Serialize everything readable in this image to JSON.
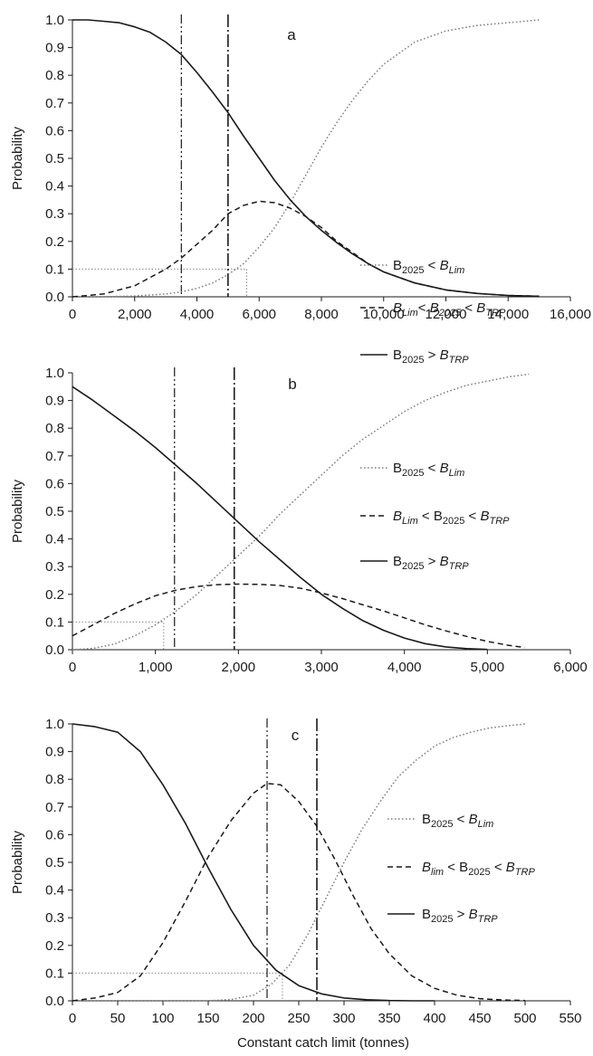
{
  "chart_data": [
    {
      "type": "line",
      "panel_label": "a",
      "ylabel": "Probability",
      "xlabel": "",
      "xlim": [
        0,
        16000
      ],
      "ylim": [
        0,
        1
      ],
      "xticks": [
        0,
        2000,
        4000,
        6000,
        8000,
        10000,
        12000,
        14000,
        16000
      ],
      "xtick_labels": [
        "0",
        "2,000",
        "4,000",
        "6,000",
        "8,000",
        "10,000",
        "12,000",
        "14,000",
        "16,000"
      ],
      "yticks": [
        0,
        0.1,
        0.2,
        0.3,
        0.4,
        0.5,
        0.6,
        0.7,
        0.8,
        0.9,
        1.0
      ],
      "ytick_labels": [
        "0.0",
        "0.1",
        "0.2",
        "0.3",
        "0.4",
        "0.5",
        "0.6",
        "0.7",
        "0.8",
        "0.9",
        "1.0"
      ],
      "grid": false,
      "legend_position": "right",
      "legend": [
        {
          "style": "dotted",
          "parts": [
            [
              "B",
              "n"
            ],
            [
              "2025",
              "sub"
            ],
            [
              " < ",
              "n"
            ],
            [
              "B",
              "i"
            ],
            [
              "Lim",
              "isub"
            ]
          ]
        },
        {
          "style": "dashed",
          "parts": [
            [
              "B",
              "i"
            ],
            [
              "Lim",
              "isub"
            ],
            [
              "< ",
              "n"
            ],
            [
              "B",
              "i"
            ],
            [
              "2025",
              "isub"
            ],
            [
              " < ",
              "n"
            ],
            [
              "B",
              "i"
            ],
            [
              "TRP",
              "isub"
            ]
          ]
        },
        {
          "style": "solid",
          "parts": [
            [
              "B",
              "n"
            ],
            [
              "2025",
              "sub"
            ],
            [
              " > ",
              "n"
            ],
            [
              "B",
              "i"
            ],
            [
              "TRP",
              "isub"
            ]
          ]
        }
      ],
      "series": [
        {
          "style": "dotted",
          "x": [
            0,
            1000,
            2000,
            3000,
            3500,
            4000,
            4500,
            5000,
            5500,
            6000,
            6500,
            7000,
            7500,
            8000,
            8500,
            9000,
            9500,
            10000,
            11000,
            12000,
            13000,
            14000,
            15000
          ],
          "y": [
            0,
            0,
            0.003,
            0.01,
            0.018,
            0.03,
            0.05,
            0.08,
            0.12,
            0.18,
            0.25,
            0.34,
            0.44,
            0.54,
            0.63,
            0.71,
            0.78,
            0.84,
            0.92,
            0.96,
            0.98,
            0.99,
            1.0
          ]
        },
        {
          "style": "dashed",
          "x": [
            0,
            1000,
            2000,
            2500,
            3000,
            3500,
            4000,
            4500,
            5000,
            5500,
            6000,
            6500,
            7000,
            7500,
            8000,
            8500,
            9000,
            9500,
            10000,
            11000,
            12000,
            13000,
            14000,
            15000
          ],
          "y": [
            0,
            0.01,
            0.04,
            0.07,
            0.1,
            0.14,
            0.19,
            0.24,
            0.3,
            0.33,
            0.345,
            0.34,
            0.32,
            0.29,
            0.25,
            0.2,
            0.16,
            0.12,
            0.09,
            0.05,
            0.025,
            0.012,
            0.005,
            0.002
          ]
        },
        {
          "style": "solid",
          "x": [
            0,
            500,
            1000,
            1500,
            2000,
            2500,
            3000,
            3500,
            4000,
            4500,
            5000,
            5500,
            6000,
            6500,
            7000,
            7500,
            8000,
            8500,
            9000,
            9500,
            10000,
            11000,
            12000,
            13000,
            14000,
            15000
          ],
          "y": [
            1.0,
            1.0,
            0.995,
            0.99,
            0.975,
            0.955,
            0.92,
            0.875,
            0.81,
            0.74,
            0.665,
            0.58,
            0.5,
            0.42,
            0.35,
            0.29,
            0.24,
            0.195,
            0.155,
            0.12,
            0.09,
            0.05,
            0.025,
            0.012,
            0.005,
            0.002
          ]
        }
      ],
      "vlines": [
        {
          "x": 3500,
          "style": "dash-dot-dot"
        },
        {
          "x": 5000,
          "style": "dash-dot"
        }
      ],
      "reference_lines": [
        {
          "style": "dotted",
          "points": [
            [
              0,
              0.1
            ],
            [
              5600,
              0.1
            ],
            [
              5600,
              0
            ]
          ]
        }
      ]
    },
    {
      "type": "line",
      "panel_label": "b",
      "ylabel": "Probability",
      "xlabel": "",
      "xlim": [
        0,
        6000
      ],
      "ylim": [
        0,
        1
      ],
      "xticks": [
        0,
        1000,
        2000,
        3000,
        4000,
        5000,
        6000
      ],
      "xtick_labels": [
        "0",
        "1,000",
        "2,000",
        "3,000",
        "4,000",
        "5,000",
        "6,000"
      ],
      "yticks": [
        0,
        0.1,
        0.2,
        0.3,
        0.4,
        0.5,
        0.6,
        0.7,
        0.8,
        0.9,
        1.0
      ],
      "ytick_labels": [
        "0.0",
        "0.1",
        "0.2",
        "0.3",
        "0.4",
        "0.5",
        "0.6",
        "0.7",
        "0.8",
        "0.9",
        "1.0"
      ],
      "grid": false,
      "legend_position": "right",
      "legend": [
        {
          "style": "dotted",
          "parts": [
            [
              "B",
              "n"
            ],
            [
              "2025",
              "sub"
            ],
            [
              " < ",
              "n"
            ],
            [
              "B",
              "i"
            ],
            [
              "Lim",
              "isub"
            ]
          ]
        },
        {
          "style": "dashed",
          "parts": [
            [
              "B",
              "i"
            ],
            [
              "Lim",
              "isub"
            ],
            [
              " < B",
              "n"
            ],
            [
              "2025",
              "sub"
            ],
            [
              " < ",
              "n"
            ],
            [
              "B",
              "i"
            ],
            [
              "TRP",
              "isub"
            ]
          ]
        },
        {
          "style": "solid",
          "parts": [
            [
              "B",
              "n"
            ],
            [
              "2025",
              "sub"
            ],
            [
              " > ",
              "n"
            ],
            [
              "B",
              "i"
            ],
            [
              "TRP",
              "isub"
            ]
          ]
        }
      ],
      "series": [
        {
          "style": "dotted",
          "x": [
            0,
            250,
            500,
            750,
            1000,
            1250,
            1500,
            1750,
            2000,
            2250,
            2500,
            2750,
            3000,
            3250,
            3500,
            3750,
            4000,
            4250,
            4500,
            4750,
            5000,
            5250,
            5500
          ],
          "y": [
            0,
            0.005,
            0.02,
            0.05,
            0.09,
            0.14,
            0.2,
            0.27,
            0.34,
            0.41,
            0.49,
            0.56,
            0.63,
            0.7,
            0.76,
            0.81,
            0.86,
            0.9,
            0.93,
            0.955,
            0.97,
            0.985,
            0.995
          ]
        },
        {
          "style": "dashed",
          "x": [
            0,
            250,
            500,
            750,
            1000,
            1250,
            1500,
            1750,
            2000,
            2250,
            2500,
            2750,
            3000,
            3250,
            3500,
            3750,
            4000,
            4250,
            4500,
            4750,
            5000,
            5250,
            5450
          ],
          "y": [
            0.05,
            0.09,
            0.13,
            0.165,
            0.195,
            0.215,
            0.228,
            0.235,
            0.237,
            0.236,
            0.232,
            0.222,
            0.205,
            0.185,
            0.162,
            0.14,
            0.115,
            0.09,
            0.068,
            0.048,
            0.03,
            0.016,
            0.008
          ]
        },
        {
          "style": "solid",
          "x": [
            0,
            250,
            500,
            750,
            1000,
            1250,
            1500,
            1750,
            2000,
            2250,
            2500,
            2750,
            3000,
            3250,
            3500,
            3750,
            4000,
            4250,
            4500,
            4750,
            5000
          ],
          "y": [
            0.95,
            0.9,
            0.845,
            0.79,
            0.73,
            0.665,
            0.6,
            0.53,
            0.46,
            0.39,
            0.325,
            0.26,
            0.2,
            0.15,
            0.105,
            0.07,
            0.042,
            0.022,
            0.01,
            0.004,
            0.001
          ]
        }
      ],
      "vlines": [
        {
          "x": 1230,
          "style": "dash-dot-dot"
        },
        {
          "x": 1950,
          "style": "dash-dot"
        }
      ],
      "reference_lines": [
        {
          "style": "dotted",
          "points": [
            [
              0,
              0.1
            ],
            [
              1100,
              0.1
            ],
            [
              1100,
              0
            ]
          ]
        }
      ]
    },
    {
      "type": "line",
      "panel_label": "c",
      "ylabel": "Probability",
      "xlabel": "Constant catch limit (tonnes)",
      "xlim": [
        0,
        550
      ],
      "ylim": [
        0,
        1
      ],
      "xticks": [
        0,
        50,
        100,
        150,
        200,
        250,
        300,
        350,
        400,
        450,
        500,
        550
      ],
      "xtick_labels": [
        "0",
        "50",
        "100",
        "150",
        "200",
        "250",
        "300",
        "350",
        "400",
        "450",
        "500",
        "550"
      ],
      "yticks": [
        0,
        0.1,
        0.2,
        0.3,
        0.4,
        0.5,
        0.6,
        0.7,
        0.8,
        0.9,
        1.0
      ],
      "ytick_labels": [
        "0.0",
        "0.1",
        "0.2",
        "0.3",
        "0.4",
        "0.5",
        "0.6",
        "0.7",
        "0.8",
        "0.9",
        "1.0"
      ],
      "grid": false,
      "legend_position": "right",
      "legend": [
        {
          "style": "dotted",
          "parts": [
            [
              "B",
              "n"
            ],
            [
              "2025",
              "sub"
            ],
            [
              " < ",
              "n"
            ],
            [
              "B",
              "i"
            ],
            [
              "Lim",
              "isub"
            ]
          ]
        },
        {
          "style": "dashed",
          "parts": [
            [
              "B",
              "i"
            ],
            [
              "lim",
              "isub"
            ],
            [
              " < B",
              "n"
            ],
            [
              "2025",
              "sub"
            ],
            [
              " < ",
              "n"
            ],
            [
              "B",
              "i"
            ],
            [
              "TRP",
              "isub"
            ]
          ]
        },
        {
          "style": "solid",
          "parts": [
            [
              "B",
              "n"
            ],
            [
              "2025",
              "sub"
            ],
            [
              " > ",
              "n"
            ],
            [
              "B",
              "i"
            ],
            [
              "TRP",
              "isub"
            ]
          ]
        }
      ],
      "series": [
        {
          "style": "dotted",
          "x": [
            0,
            150,
            175,
            200,
            220,
            240,
            260,
            280,
            300,
            320,
            340,
            360,
            380,
            400,
            420,
            440,
            460,
            480,
            500
          ],
          "y": [
            0,
            0,
            0.005,
            0.02,
            0.06,
            0.13,
            0.24,
            0.37,
            0.5,
            0.62,
            0.72,
            0.81,
            0.87,
            0.92,
            0.95,
            0.97,
            0.985,
            0.993,
            1.0
          ]
        },
        {
          "style": "dashed",
          "x": [
            0,
            25,
            50,
            75,
            100,
            125,
            150,
            175,
            200,
            215,
            230,
            250,
            270,
            290,
            310,
            330,
            350,
            375,
            400,
            425,
            450,
            475,
            500
          ],
          "y": [
            0,
            0.01,
            0.03,
            0.09,
            0.21,
            0.36,
            0.52,
            0.65,
            0.75,
            0.785,
            0.78,
            0.72,
            0.63,
            0.51,
            0.38,
            0.26,
            0.17,
            0.09,
            0.045,
            0.02,
            0.008,
            0.003,
            0.001
          ]
        },
        {
          "style": "solid",
          "x": [
            0,
            25,
            50,
            75,
            100,
            125,
            150,
            175,
            200,
            225,
            250,
            275,
            300,
            325,
            350,
            375,
            400
          ],
          "y": [
            1.0,
            0.99,
            0.97,
            0.9,
            0.78,
            0.64,
            0.48,
            0.33,
            0.2,
            0.11,
            0.055,
            0.025,
            0.01,
            0.004,
            0.001,
            0,
            0
          ]
        }
      ],
      "vlines": [
        {
          "x": 215,
          "style": "dash-dot-dot"
        },
        {
          "x": 270,
          "style": "dash-dot"
        }
      ],
      "reference_lines": [
        {
          "style": "dotted",
          "points": [
            [
              0,
              0.1
            ],
            [
              232,
              0.1
            ],
            [
              232,
              0
            ]
          ]
        }
      ]
    }
  ]
}
